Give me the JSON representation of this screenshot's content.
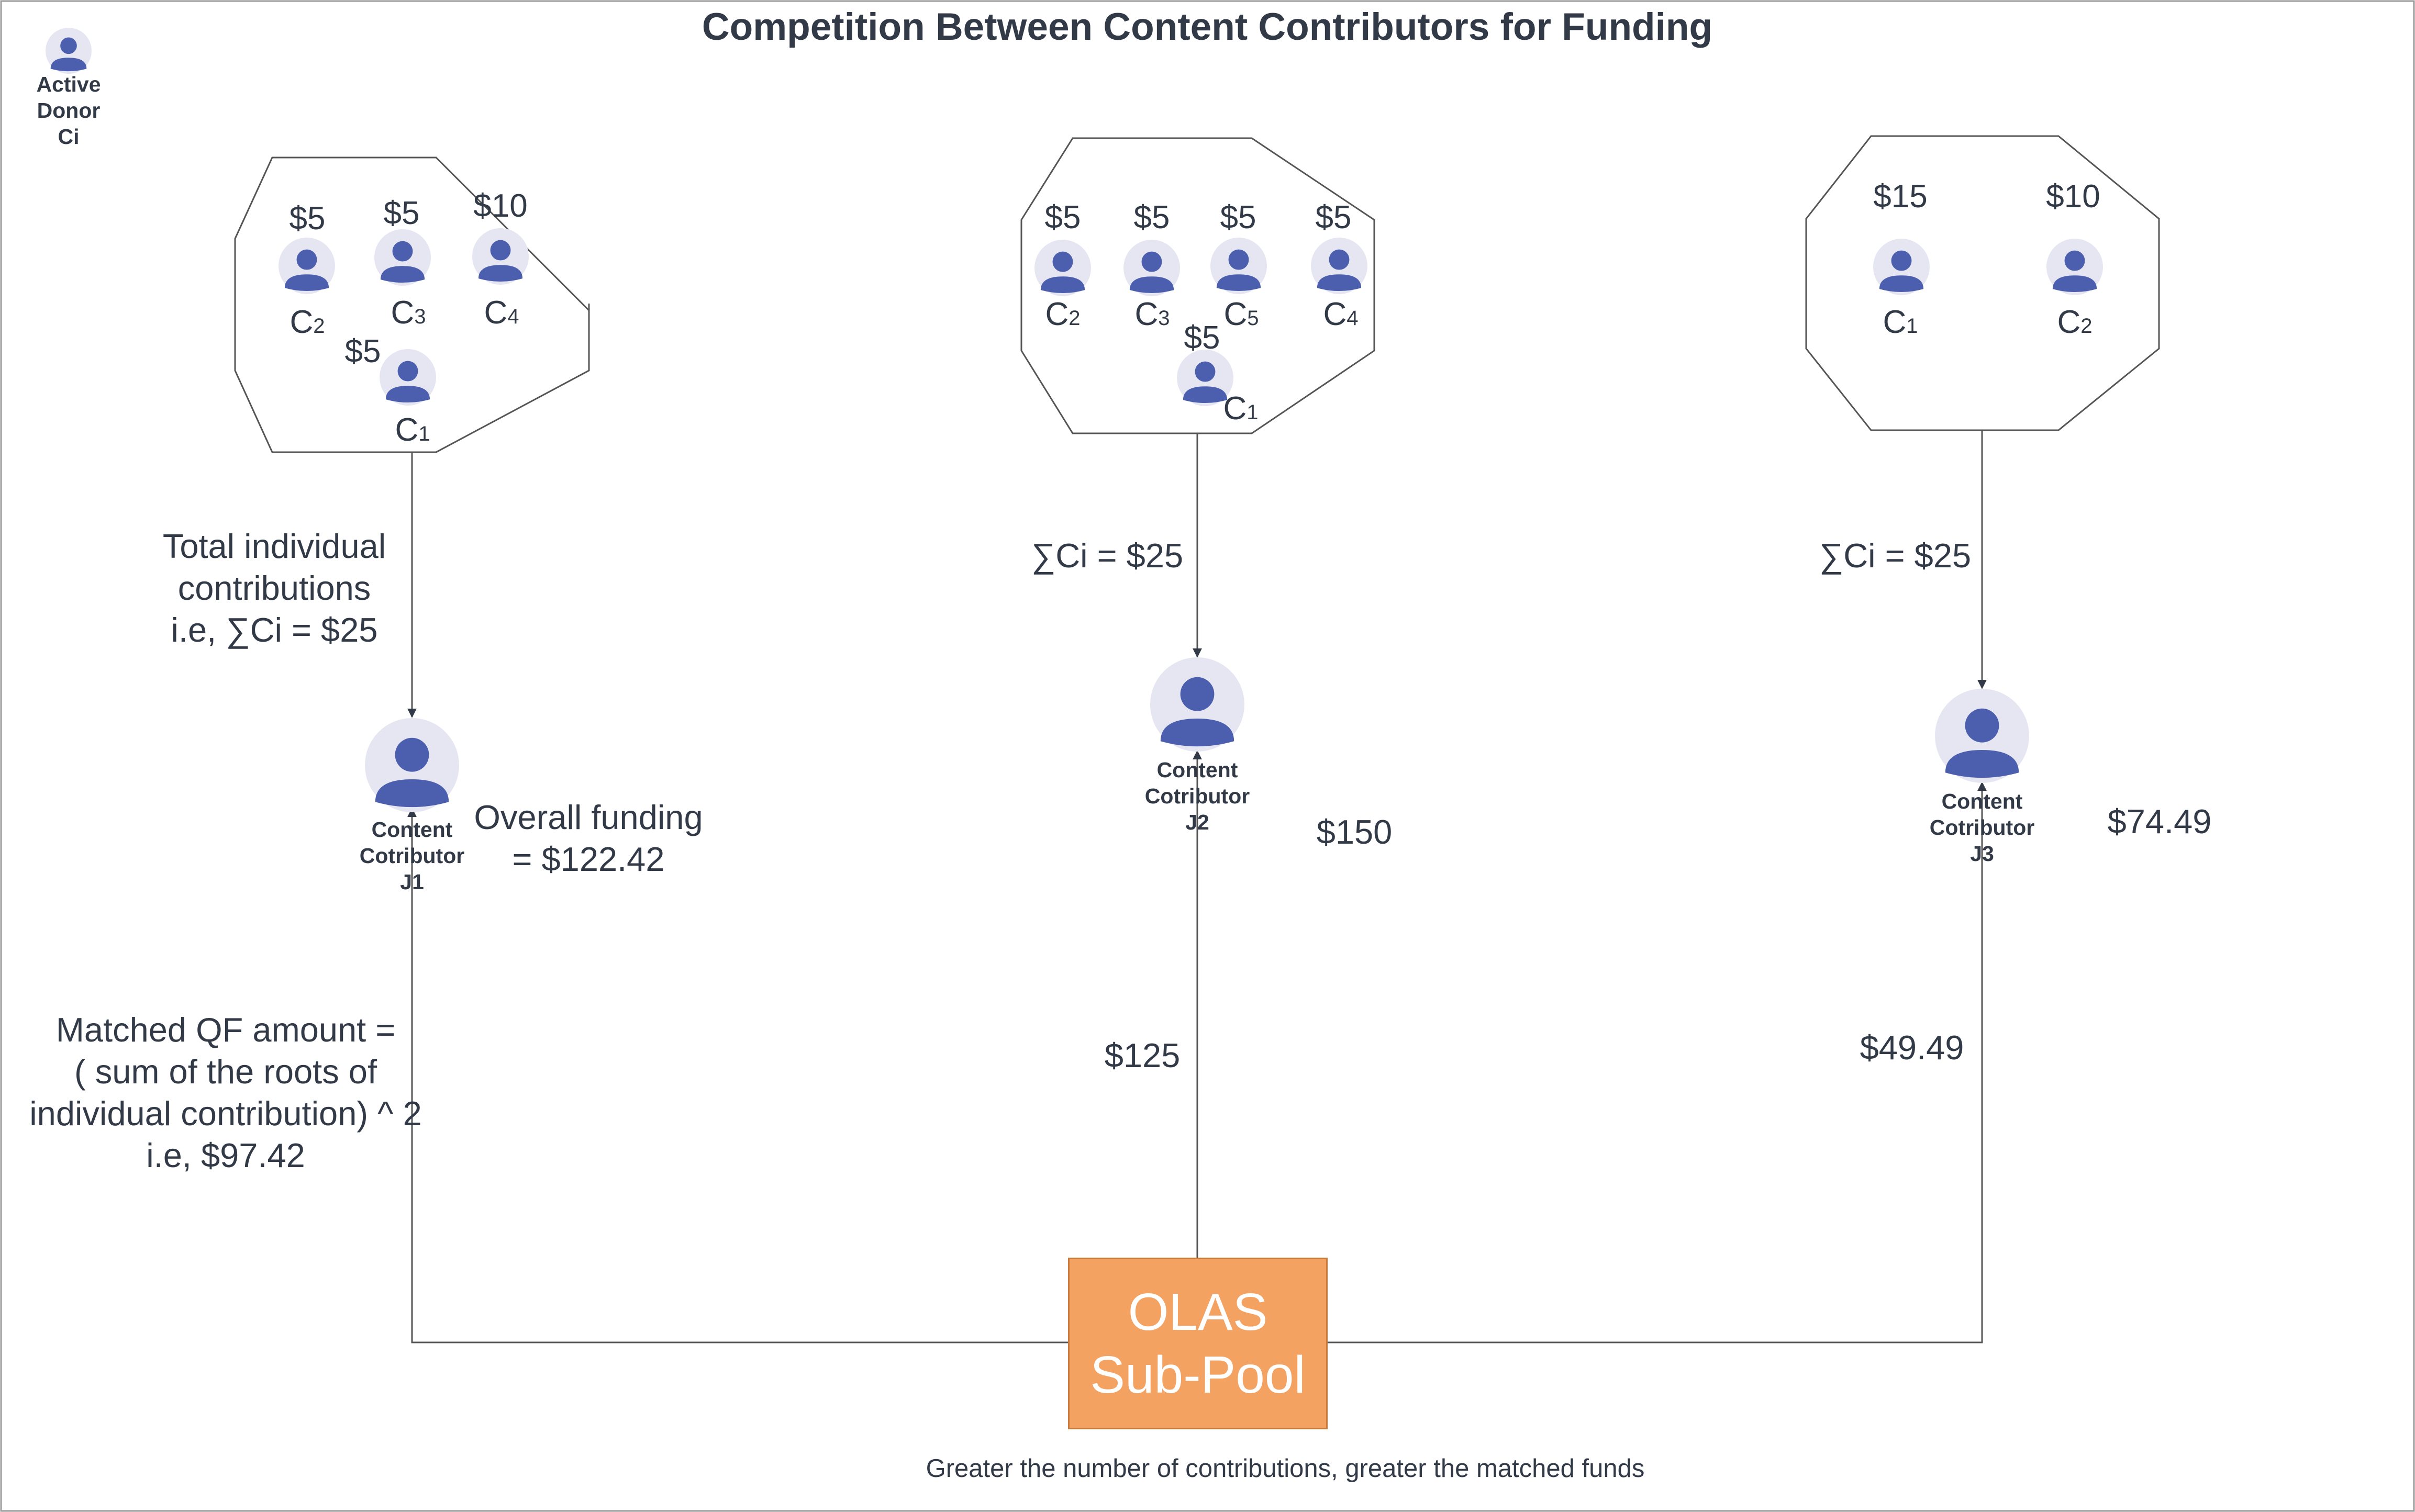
{
  "title": "Competition Between Content Contributors for Funding",
  "legend": {
    "label": "Active\nDonor\nCi"
  },
  "groups": [
    {
      "donors": [
        {
          "amount": "$5",
          "name": "C",
          "sub": "2"
        },
        {
          "amount": "$5",
          "name": "C",
          "sub": "3"
        },
        {
          "amount": "$10",
          "name": "C",
          "sub": "4"
        },
        {
          "amount": "$5",
          "name": "C",
          "sub": "1"
        }
      ],
      "sum_text": "Total individual\ncontributions\ni.e, ∑Ci = $25",
      "contributor_label": "Content\nCotributor\nJ1",
      "funding_text": "Overall funding\n= $122.42",
      "match_text": "Matched QF amount =\n( sum of the roots of\nindividual contribution) ^ 2\ni.e, $97.42"
    },
    {
      "donors": [
        {
          "amount": "$5",
          "name": "C",
          "sub": "2"
        },
        {
          "amount": "$5",
          "name": "C",
          "sub": "3"
        },
        {
          "amount": "$5",
          "name": "C",
          "sub": "5"
        },
        {
          "amount": "$5",
          "name": "C",
          "sub": "4"
        },
        {
          "amount": "$5",
          "name": "C",
          "sub": "1"
        }
      ],
      "sum_text": "∑Ci = $25",
      "contributor_label": "Content\nCotributor\nJ2",
      "funding_text": "$150",
      "match_text": "$125"
    },
    {
      "donors": [
        {
          "amount": "$15",
          "name": "C",
          "sub": "1"
        },
        {
          "amount": "$10",
          "name": "C",
          "sub": "2"
        }
      ],
      "sum_text": "∑Ci = $25",
      "contributor_label": "Content\nCotributor\nJ3",
      "funding_text": "$74.49",
      "match_text": "$49.49"
    }
  ],
  "pool": {
    "line1": "OLAS",
    "line2": "Sub-Pool"
  },
  "footer": "Greater the number of contributions, greater the matched funds",
  "colors": {
    "avatar": "#4c5fae",
    "avatar_bg": "#e6e6f2",
    "pool": "#f4a261",
    "line": "#555555",
    "text": "#333a47"
  },
  "icons": {
    "donor": "user-avatar-icon",
    "contributor": "user-avatar-icon"
  }
}
